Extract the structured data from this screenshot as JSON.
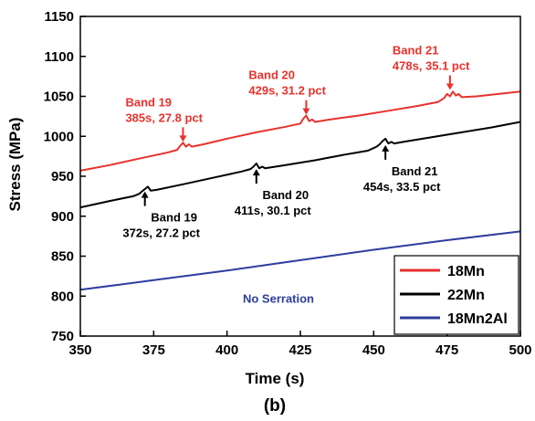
{
  "colors": {
    "18Mn": "#e8322d",
    "22Mn": "#000000",
    "18Mn2Al": "#2e3d9e",
    "no_serration": "#2e3d9e"
  },
  "panel_label": "(b)",
  "chart_data": {
    "type": "line",
    "title": "",
    "xlabel": "Time (s)",
    "ylabel": "Stress (MPa)",
    "xlim": [
      350,
      500
    ],
    "ylim": [
      750,
      1150
    ],
    "xticks": [
      350,
      375,
      400,
      425,
      450,
      475,
      500
    ],
    "yticks": [
      750,
      800,
      850,
      900,
      950,
      1000,
      1050,
      1100,
      1150
    ],
    "grid": false,
    "legend_position": "bottom-right",
    "series": [
      {
        "name": "18Mn",
        "color": "#e8322d",
        "x": [
          350,
          360,
          370,
          380,
          383,
          384,
          385,
          386,
          387,
          388,
          392,
          400,
          410,
          420,
          425,
          426,
          427,
          428,
          429,
          430,
          435,
          445,
          455,
          465,
          472,
          474,
          475,
          476,
          477,
          478,
          479,
          480,
          485,
          490,
          495,
          500
        ],
        "y": [
          957,
          964,
          972,
          980,
          983,
          988,
          992,
          987,
          990,
          987,
          990,
          997,
          1005,
          1012,
          1016,
          1022,
          1026,
          1019,
          1021,
          1018,
          1021,
          1026,
          1032,
          1038,
          1043,
          1048,
          1053,
          1050,
          1056,
          1051,
          1053,
          1049,
          1050,
          1052,
          1054,
          1056
        ]
      },
      {
        "name": "22Mn",
        "color": "#000000",
        "x": [
          350,
          360,
          368,
          370,
          371,
          372,
          373,
          374,
          376,
          385,
          395,
          405,
          408,
          409,
          410,
          411,
          412,
          413,
          420,
          430,
          440,
          448,
          451,
          452,
          453,
          454,
          455,
          456,
          457,
          460,
          470,
          480,
          490,
          500
        ],
        "y": [
          911,
          919,
          925,
          928,
          931,
          934,
          937,
          932,
          933,
          940,
          948,
          956,
          959,
          962,
          966,
          960,
          962,
          960,
          964,
          970,
          977,
          982,
          987,
          990,
          994,
          997,
          991,
          993,
          991,
          993,
          999,
          1005,
          1011,
          1018
        ]
      },
      {
        "name": "18Mn2Al",
        "color": "#2e3d9e",
        "x": [
          350,
          375,
          400,
          425,
          450,
          475,
          500
        ],
        "y": [
          808,
          820,
          832,
          845,
          858,
          870,
          881
        ]
      }
    ],
    "annotations": [
      {
        "series": "18Mn",
        "line1": "Band 19",
        "line2": "385s, 27.8 pct",
        "arrow_x": 385,
        "arrow_tip_y": 993,
        "direction": "down"
      },
      {
        "series": "18Mn",
        "line1": "Band 20",
        "line2": "429s, 31.2 pct",
        "arrow_x": 427,
        "arrow_tip_y": 1027,
        "direction": "down"
      },
      {
        "series": "18Mn",
        "line1": "Band 21",
        "line2": "478s, 35.1 pct",
        "arrow_x": 476,
        "arrow_tip_y": 1058,
        "direction": "down"
      },
      {
        "series": "22Mn",
        "line1": "Band 19",
        "line2": "372s, 27.2 pct",
        "arrow_x": 372,
        "arrow_tip_y": 931,
        "direction": "up"
      },
      {
        "series": "22Mn",
        "line1": "Band 20",
        "line2": "411s, 30.1 pct",
        "arrow_x": 410,
        "arrow_tip_y": 959,
        "direction": "up"
      },
      {
        "series": "22Mn",
        "line1": "Band 21",
        "line2": "454s, 33.5 pct",
        "arrow_x": 454,
        "arrow_tip_y": 989,
        "direction": "up"
      }
    ],
    "text_annotations": [
      {
        "text": "No Serration",
        "x": 425,
        "y": 792,
        "color": "#2e3d9e"
      }
    ]
  }
}
